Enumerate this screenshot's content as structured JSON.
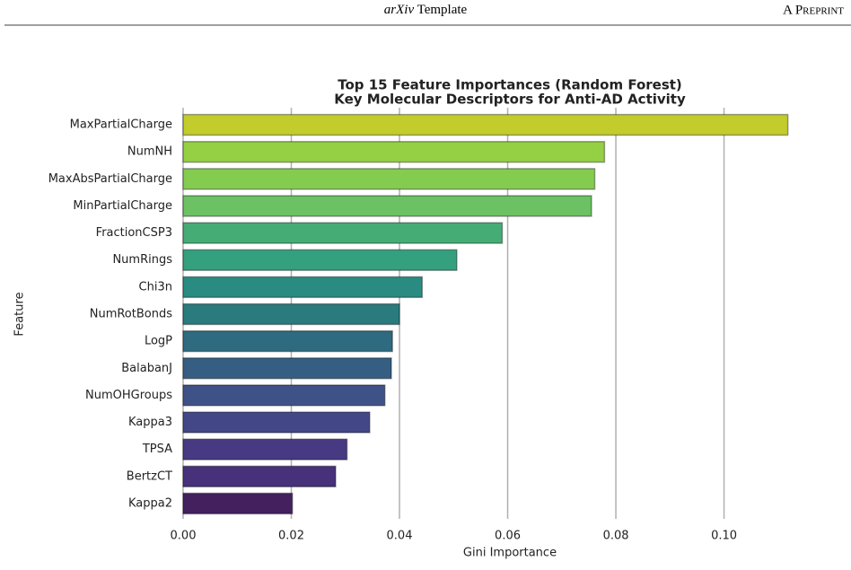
{
  "header": {
    "journal_italic": "arXiv",
    "journal": "Template",
    "label": "A Preprint"
  },
  "chart_data": {
    "type": "barh",
    "title": [
      "Top 15 Feature Importances (Random Forest)",
      "Key Molecular Descriptors for Anti-AD Activity"
    ],
    "x_label": "Gini Importance",
    "y_label": "Feature",
    "categories": [
      "MaxPartialCharge",
      "NumNH",
      "MaxAbsPartialCharge",
      "MinPartialCharge",
      "FractionCSP3",
      "NumRings",
      "Chi3n",
      "NumRotBonds",
      "LogP",
      "BalabanJ",
      "NumOHGroups",
      "Kappa3",
      "TPSA",
      "BertzCT",
      "Kappa2"
    ],
    "values": [
      0.1118,
      0.0779,
      0.0761,
      0.0755,
      0.059,
      0.0506,
      0.0442,
      0.04,
      0.0387,
      0.0385,
      0.0373,
      0.0345,
      0.0303,
      0.0282,
      0.0202
    ],
    "colors": [
      "#c2cc2b",
      "#95cf44",
      "#84cc4f",
      "#6cc163",
      "#46ac75",
      "#35a07d",
      "#2a8b82",
      "#2a7b7e",
      "#2e6b80",
      "#365e83",
      "#3f5287",
      "#434787",
      "#473a83",
      "#47317b",
      "#44205f"
    ],
    "xlim": [
      0,
      0.1175
    ],
    "xticks": [
      {
        "value": 0,
        "label": "0.00"
      },
      {
        "value": 0.02,
        "label": "0.02"
      },
      {
        "value": 0.04,
        "label": "0.04"
      },
      {
        "value": 0.06,
        "label": "0.06"
      },
      {
        "value": 0.08,
        "label": "0.08"
      },
      {
        "value": 0.1,
        "label": "0.10"
      }
    ],
    "grid": true
  }
}
